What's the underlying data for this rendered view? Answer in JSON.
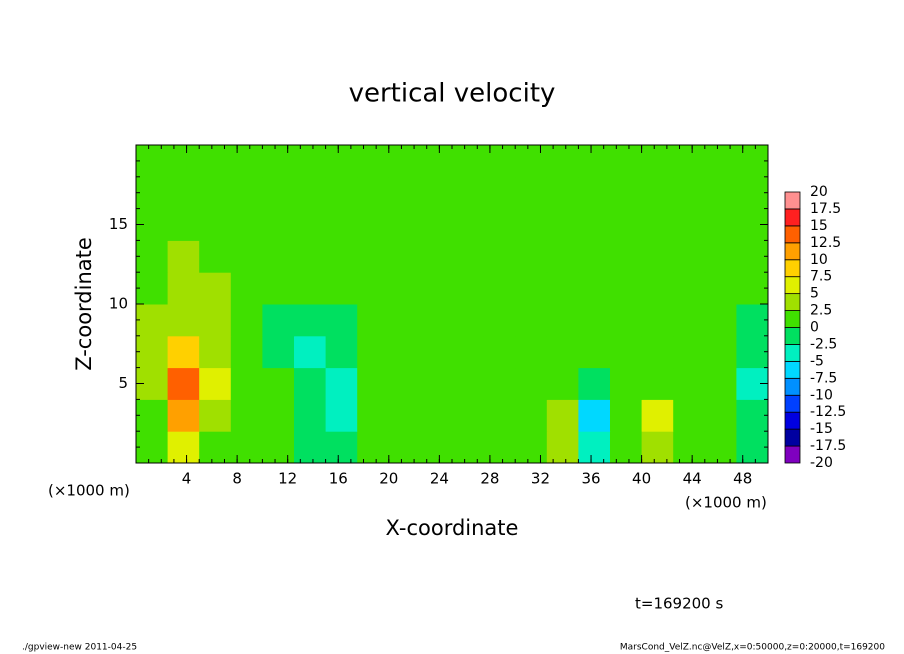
{
  "chart_data": {
    "type": "contour",
    "title": "vertical velocity",
    "x_label": "X-coordinate",
    "y_label": "Z-coordinate",
    "x_unit_labels": [
      "(×1000 m)",
      "(×1000 m)"
    ],
    "annotation": "t=169200 s",
    "footer_left": "./gpview-new  2011-04-25",
    "footer_right": "MarsCond_VelZ.nc@VelZ,x=0:50000,z=0:20000,t=169200",
    "xlim": [
      0,
      50
    ],
    "ylim": [
      0,
      20
    ],
    "xticks": [
      4,
      8,
      12,
      16,
      20,
      24,
      28,
      32,
      36,
      40,
      44,
      48
    ],
    "yticks": [
      5,
      10,
      15
    ],
    "x": [
      1.25,
      3.75,
      6.25,
      8.75,
      11.25,
      13.75,
      16.25,
      18.75,
      21.25,
      23.75,
      26.25,
      28.75,
      31.25,
      33.75,
      36.25,
      38.75,
      41.25,
      43.75,
      46.25,
      48.75
    ],
    "y": [
      1,
      3,
      5,
      7,
      9,
      11,
      13,
      15,
      17,
      19
    ],
    "z": [
      [
        1,
        6,
        2,
        1,
        0.5,
        -1,
        -1,
        1,
        1,
        0.5,
        1,
        1,
        1.5,
        3,
        -3,
        1,
        3,
        1,
        0.5,
        -1
      ],
      [
        2,
        12,
        4,
        1,
        0.5,
        -1.5,
        -4,
        1,
        1,
        0.5,
        1,
        1.5,
        2,
        4,
        -7,
        1,
        6,
        1.5,
        0.5,
        -2
      ],
      [
        3,
        14,
        5,
        1.5,
        0,
        -2.5,
        -3,
        0.5,
        1,
        0.5,
        1,
        1,
        1.5,
        2,
        -2,
        1,
        2,
        1,
        0.5,
        -3
      ],
      [
        3,
        8,
        4,
        1.5,
        -1,
        -3,
        -1,
        0.5,
        0.5,
        0.5,
        0.5,
        1,
        1,
        1,
        0,
        0.5,
        1,
        0.5,
        0,
        -2
      ],
      [
        2.5,
        4,
        3,
        1.5,
        -0.5,
        -1,
        -0.5,
        0.5,
        0.5,
        0.5,
        0.5,
        0.5,
        0.5,
        0.5,
        0.5,
        0.5,
        0.5,
        0.5,
        0.5,
        -1
      ],
      [
        2,
        3,
        2.5,
        1,
        0.5,
        0.5,
        0.5,
        0.5,
        0.5,
        0.5,
        0.5,
        0.5,
        0.5,
        0.5,
        0.5,
        0.5,
        0.5,
        0.5,
        0.5,
        0.5
      ],
      [
        2,
        2.5,
        2,
        1,
        1,
        1,
        1,
        1,
        1,
        1,
        1,
        1,
        1,
        1,
        1,
        1,
        1,
        1,
        1,
        1
      ],
      [
        1.5,
        2,
        1.5,
        1,
        1,
        1,
        1,
        1,
        1,
        1,
        1,
        1,
        1,
        1,
        1,
        1,
        1,
        1,
        1,
        1
      ],
      [
        1,
        1,
        1,
        1,
        1,
        1,
        1,
        1,
        1,
        1,
        1,
        1,
        1,
        1,
        1,
        1,
        1,
        1,
        1,
        1
      ],
      [
        1,
        1,
        1,
        1,
        1,
        1,
        1,
        1,
        1,
        1,
        1,
        1,
        1,
        1,
        1,
        1,
        1,
        1,
        1,
        1
      ]
    ],
    "levels": [
      -20,
      -17.5,
      -15,
      -12.5,
      -10,
      -7.5,
      -5,
      -2.5,
      0,
      2.5,
      5,
      7.5,
      10,
      12.5,
      15,
      17.5,
      20
    ],
    "colors": [
      "#7f00bf",
      "#0000a0",
      "#0000e0",
      "#0040ff",
      "#0090ff",
      "#00d8ff",
      "#00f0c0",
      "#00e060",
      "#40e000",
      "#a0e000",
      "#e0f000",
      "#ffd000",
      "#ffa000",
      "#ff6000",
      "#ff2020",
      "#ff9090"
    ]
  }
}
